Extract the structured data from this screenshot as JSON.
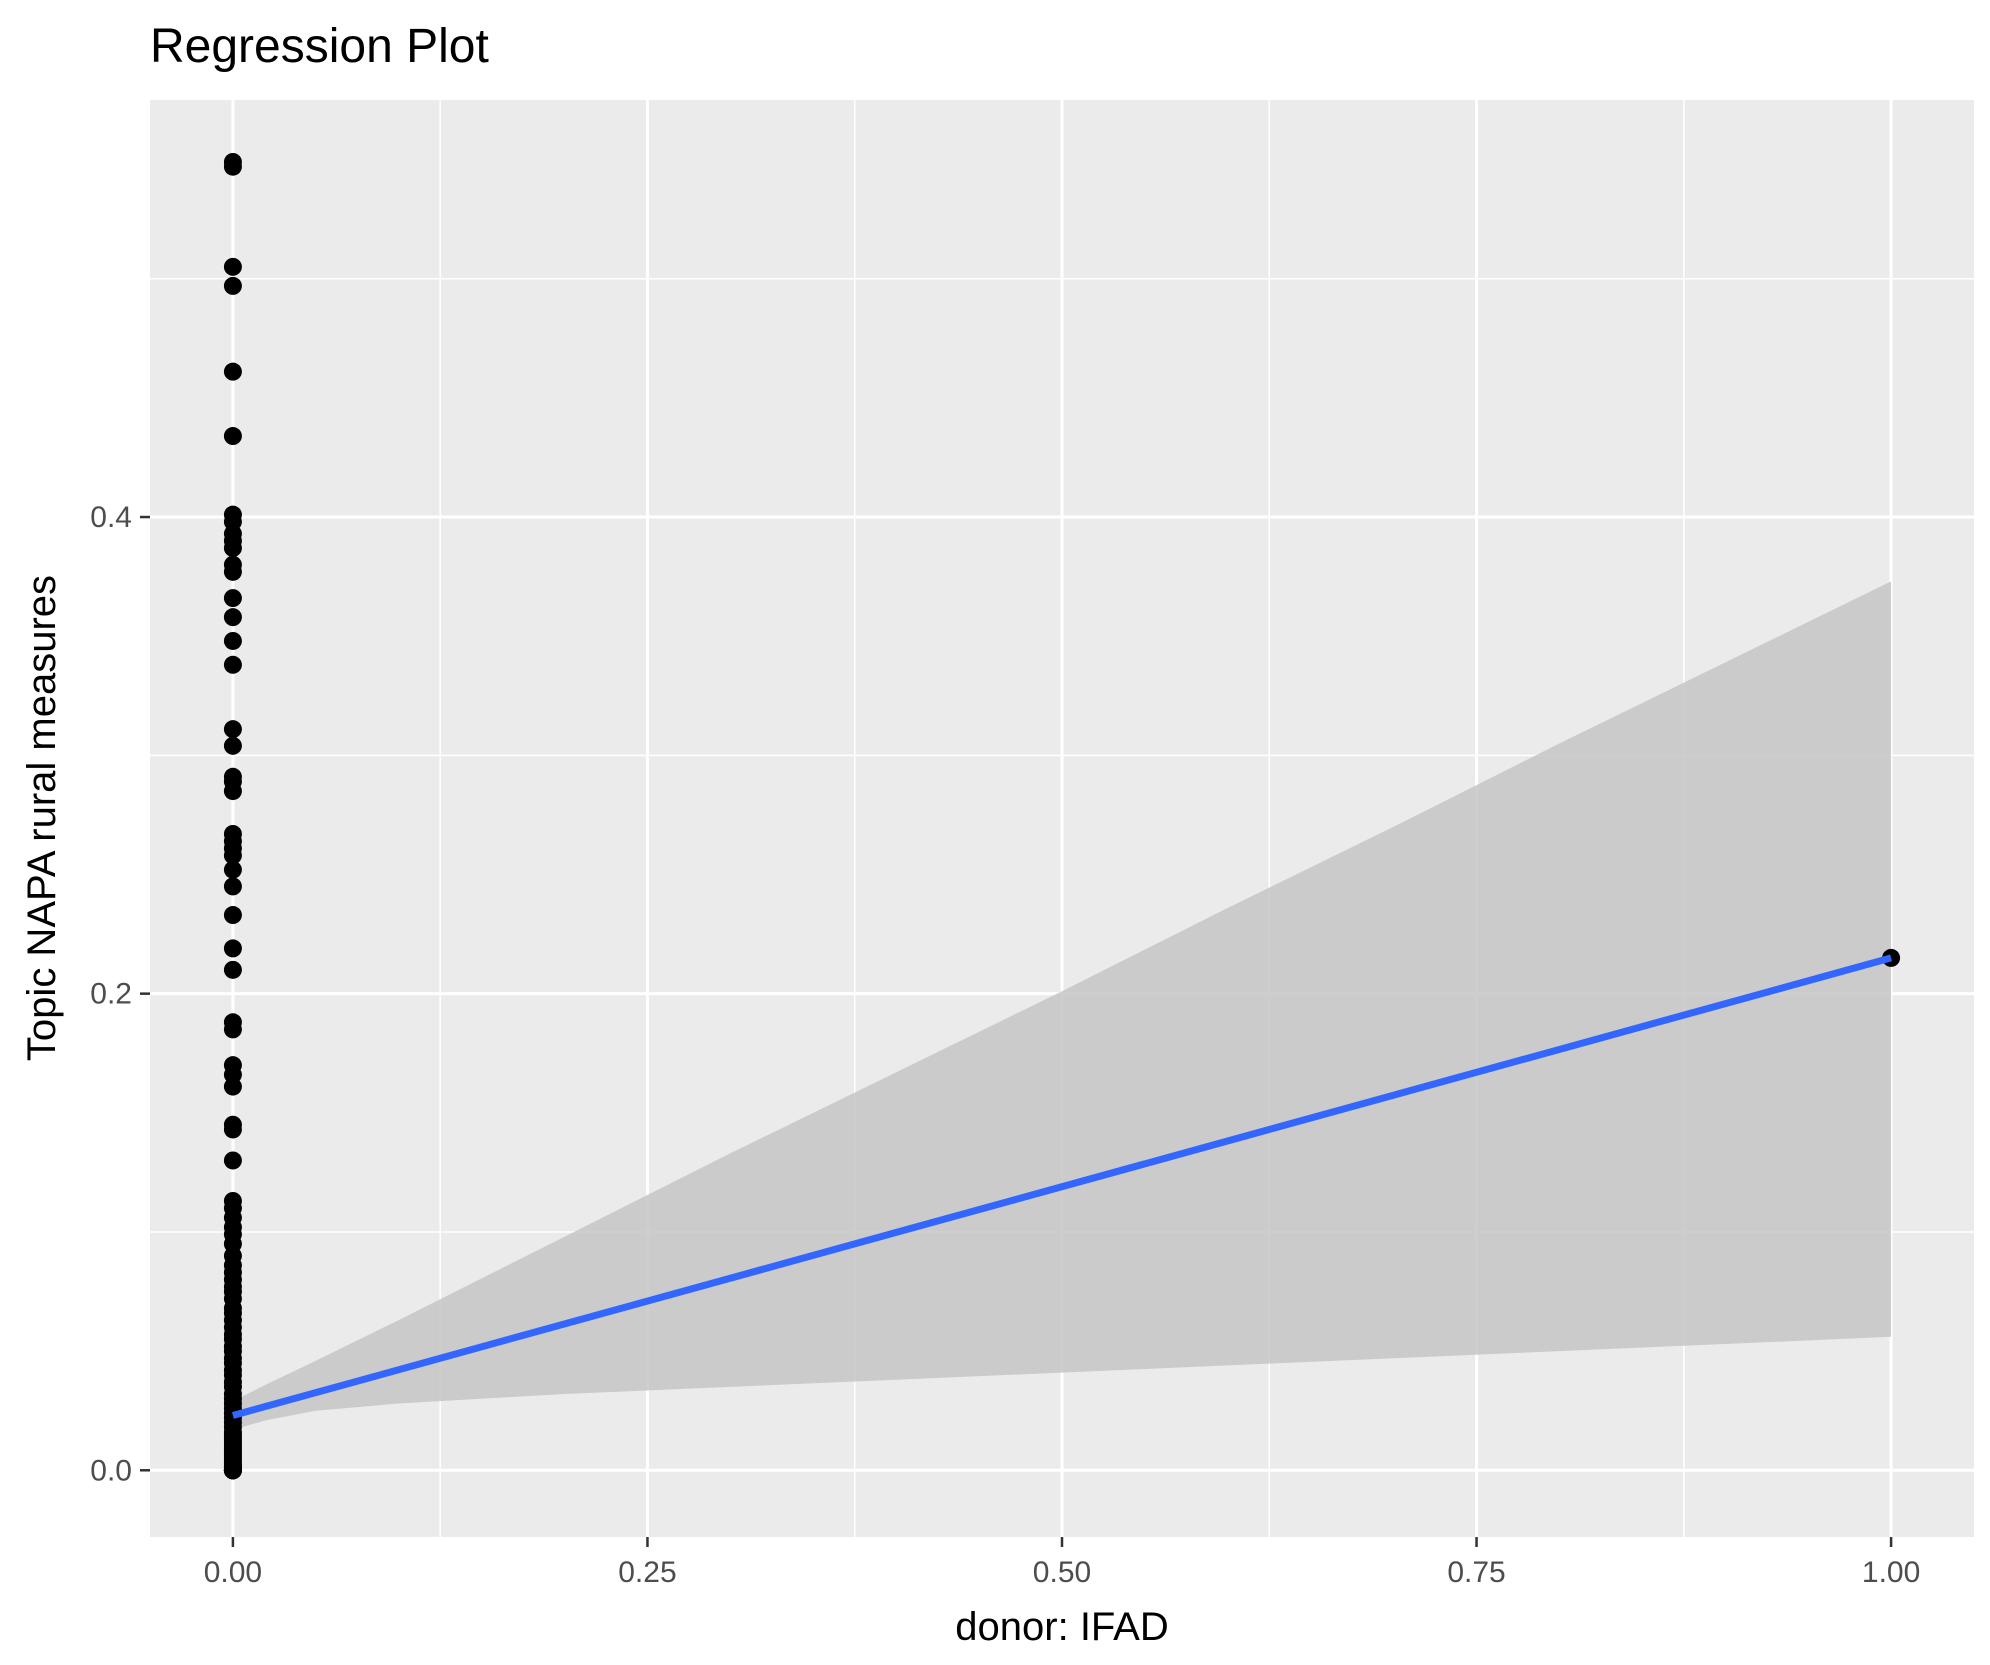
{
  "chart_data": {
    "type": "scatter",
    "title": "Regression Plot",
    "xlabel": "donor: IFAD",
    "ylabel": "Topic NAPA rural measures",
    "xlim": [
      -0.05,
      1.05
    ],
    "ylim": [
      -0.028,
      0.575
    ],
    "x_ticks": [
      0.0,
      0.25,
      0.5,
      0.75,
      1.0
    ],
    "x_tick_labels": [
      "0.00",
      "0.25",
      "0.50",
      "0.75",
      "1.00"
    ],
    "y_ticks": [
      0.0,
      0.2,
      0.4
    ],
    "y_tick_labels": [
      "0.0",
      "0.2",
      "0.4"
    ],
    "grid": true,
    "legend": "none",
    "colors": {
      "panel": "#ebebeb",
      "grid": "#ffffff",
      "points": "#000000",
      "line": "#3366ff",
      "ribbon": "#c6c6c6"
    },
    "points": {
      "x": [
        0,
        0,
        0,
        0,
        0,
        0,
        0,
        0,
        0,
        0,
        0,
        0,
        0,
        0,
        0,
        0,
        0,
        0,
        0,
        0,
        0,
        0,
        0,
        0,
        0,
        0,
        0,
        0,
        0,
        0,
        0,
        0,
        0,
        0,
        0,
        0,
        0,
        0,
        0,
        0,
        0,
        0,
        0,
        0,
        0,
        0,
        0,
        0,
        0,
        0,
        0,
        0,
        0,
        0,
        0,
        0,
        0,
        0,
        0,
        0,
        0,
        0,
        0,
        0,
        0,
        0,
        0,
        0,
        0,
        0,
        0,
        0,
        0,
        0,
        0,
        0,
        0,
        0,
        0,
        0,
        0,
        0,
        0,
        0,
        0,
        0,
        0,
        0,
        0,
        0,
        0,
        0,
        0,
        0,
        0,
        0,
        0,
        0,
        0,
        0,
        0,
        1
      ],
      "y": [
        0.549,
        0.547,
        0.505,
        0.497,
        0.461,
        0.434,
        0.401,
        0.398,
        0.393,
        0.39,
        0.387,
        0.38,
        0.377,
        0.366,
        0.358,
        0.348,
        0.338,
        0.311,
        0.304,
        0.291,
        0.289,
        0.285,
        0.267,
        0.264,
        0.261,
        0.258,
        0.252,
        0.245,
        0.233,
        0.219,
        0.21,
        0.188,
        0.185,
        0.17,
        0.166,
        0.161,
        0.145,
        0.143,
        0.13,
        0.113,
        0.11,
        0.106,
        0.102,
        0.099,
        0.095,
        0.09,
        0.086,
        0.083,
        0.08,
        0.077,
        0.075,
        0.072,
        0.068,
        0.066,
        0.063,
        0.06,
        0.057,
        0.055,
        0.052,
        0.05,
        0.047,
        0.045,
        0.042,
        0.04,
        0.037,
        0.035,
        0.032,
        0.03,
        0.028,
        0.026,
        0.024,
        0.022,
        0.02,
        0.018,
        0.016,
        0.015,
        0.014,
        0.013,
        0.012,
        0.011,
        0.01,
        0.009,
        0.008,
        0.007,
        0.006,
        0.005,
        0.004,
        0.003,
        0.002,
        0.0015,
        0.001,
        0.0005,
        0.0,
        0.0,
        0.0,
        0.0,
        0.0,
        0.0,
        0.0,
        0.0,
        0.0,
        0.215
      ]
    },
    "fit": {
      "x": [
        0,
        1
      ],
      "y": [
        0.023,
        0.215
      ]
    },
    "ribbon": {
      "x": [
        0,
        0.02,
        0.05,
        0.1,
        0.2,
        0.3,
        0.4,
        0.5,
        0.6,
        0.7,
        0.8,
        0.9,
        1.0
      ],
      "ymax": [
        0.029,
        0.036,
        0.046,
        0.063,
        0.098,
        0.133,
        0.167,
        0.201,
        0.236,
        0.27,
        0.305,
        0.339,
        0.373
      ],
      "ymin": [
        0.017,
        0.021,
        0.025,
        0.028,
        0.032,
        0.035,
        0.038,
        0.041,
        0.044,
        0.047,
        0.05,
        0.053,
        0.056
      ]
    }
  }
}
